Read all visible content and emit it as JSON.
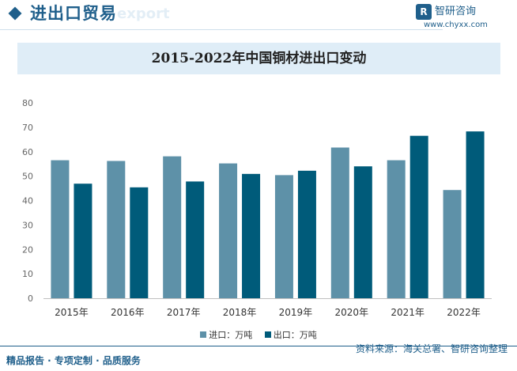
{
  "header": {
    "title": "进出口贸易",
    "ghost": "export"
  },
  "brand": {
    "logo_char": "R",
    "name": "智研咨询",
    "url": "www.chyxx.com"
  },
  "colors": {
    "import": "#5e91a8",
    "export": "#005b7a",
    "accent": "#1f5f8b"
  },
  "chart_data": {
    "type": "bar",
    "title": "2015-2022年中国铜材进出口变动",
    "categories": [
      "2015年",
      "2016年",
      "2017年",
      "2018年",
      "2019年",
      "2020年",
      "2021年",
      "2022年"
    ],
    "series": [
      {
        "name": "进口：万吨",
        "values": [
          56.5,
          56.2,
          58.1,
          55.2,
          50.4,
          61.7,
          56.5,
          44.3
        ]
      },
      {
        "name": "出口：万吨",
        "values": [
          46.9,
          45.4,
          47.8,
          50.9,
          52.2,
          54.0,
          66.5,
          68.3
        ]
      }
    ],
    "yticks": [
      0,
      10,
      20,
      30,
      40,
      50,
      60,
      70,
      80
    ],
    "ylim": [
      0,
      80
    ],
    "grid": false,
    "legend": "bottom-center"
  },
  "footer": {
    "left": "精品报告 · 专项定制 · 品质服务",
    "right": "资料来源：海关总署、智研咨询整理"
  }
}
